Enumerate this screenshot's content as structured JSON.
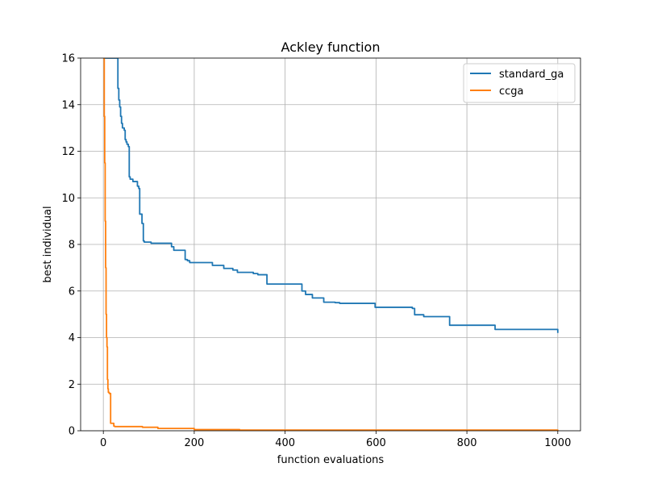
{
  "chart_data": {
    "type": "line",
    "title": "Ackley function",
    "xlabel": "function evaluations",
    "ylabel": "best individual",
    "xlim": [
      -50,
      1050
    ],
    "ylim": [
      0,
      16
    ],
    "xticks": [
      0,
      200,
      400,
      600,
      800,
      1000
    ],
    "yticks": [
      0,
      2,
      4,
      6,
      8,
      10,
      12,
      14,
      16
    ],
    "xtick_labels": [
      "0",
      "200",
      "400",
      "600",
      "800",
      "1000"
    ],
    "ytick_labels": [
      "0",
      "2",
      "4",
      "6",
      "8",
      "10",
      "12",
      "14",
      "16"
    ],
    "grid": true,
    "legend_position": "top-right",
    "series": [
      {
        "name": "standard_ga",
        "color": "#1f77b4",
        "x": [
          0,
          20,
          30,
          32,
          34,
          36,
          38,
          40,
          42,
          44,
          46,
          48,
          50,
          52,
          55,
          57,
          59,
          62,
          63,
          64,
          65,
          75,
          78,
          80,
          82,
          85,
          88,
          90,
          92,
          95,
          105,
          110,
          150,
          155,
          165,
          180,
          185,
          190,
          240,
          245,
          265,
          285,
          295,
          330,
          340,
          360,
          435,
          437,
          445,
          460,
          485,
          510,
          520,
          595,
          598,
          670,
          680,
          685,
          705,
          760,
          762,
          860,
          862,
          995,
          1000
        ],
        "y": [
          16,
          16,
          16,
          14.7,
          14.2,
          13.9,
          13.5,
          13.2,
          13.0,
          13.0,
          12.9,
          12.5,
          12.4,
          12.3,
          12.2,
          10.9,
          10.8,
          10.8,
          10.8,
          10.8,
          10.7,
          10.5,
          10.4,
          9.3,
          9.3,
          8.9,
          8.15,
          8.1,
          8.1,
          8.1,
          8.05,
          8.05,
          7.9,
          7.75,
          7.75,
          7.35,
          7.3,
          7.22,
          7.1,
          7.1,
          6.97,
          6.9,
          6.8,
          6.75,
          6.7,
          6.3,
          6.3,
          6.0,
          5.85,
          5.7,
          5.52,
          5.5,
          5.47,
          5.47,
          5.3,
          5.3,
          5.25,
          4.98,
          4.9,
          4.9,
          4.53,
          4.53,
          4.35,
          4.35,
          4.2
        ]
      },
      {
        "name": "ccga",
        "color": "#ff7f0e",
        "x": [
          0,
          1,
          2,
          3,
          4,
          5,
          6,
          7,
          8,
          9,
          10,
          11,
          13,
          16,
          20,
          23,
          25,
          40,
          84,
          86,
          120,
          200,
          300,
          1000
        ],
        "y": [
          16,
          16,
          13.5,
          11.5,
          9,
          7,
          5,
          4,
          3.6,
          2.2,
          1.8,
          1.65,
          1.6,
          0.32,
          0.32,
          0.2,
          0.18,
          0.18,
          0.18,
          0.15,
          0.1,
          0.05,
          0.03,
          0.0
        ]
      }
    ]
  }
}
